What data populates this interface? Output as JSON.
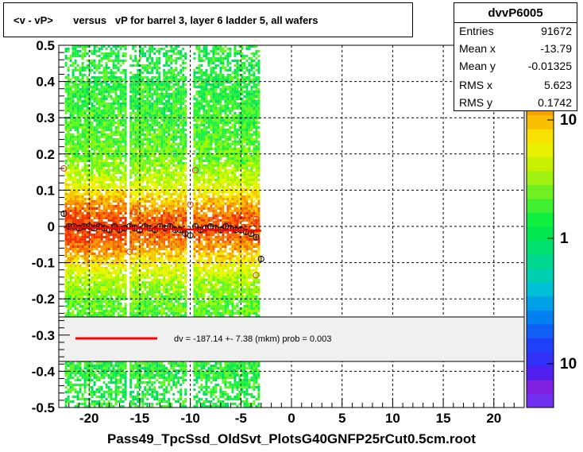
{
  "title": "<v - vP>       versus   vP for barrel 3, layer 6 ladder 5, all wafers",
  "stats": {
    "name": "dvvP6005",
    "rows": [
      {
        "label": "Entries",
        "value": "91672"
      },
      {
        "label": "Mean x",
        "value": "-13.79"
      },
      {
        "label": "Mean y",
        "value": "-0.01325"
      },
      {
        "label": "RMS x",
        "value": "5.623"
      },
      {
        "label": "RMS y",
        "value": "0.1742"
      }
    ]
  },
  "x_axis_title": "Pass49_TpcSsd_OldSvt_PlotsG40GNFP25rCut0.5cm.root",
  "legend": {
    "fit_text": "dv = -187.14 +-  7.38 (mkm) prob = 0.003",
    "line_color": "#ff0000"
  },
  "color_scale": {
    "labels": [
      "10",
      "1",
      "10"
    ]
  },
  "chart_data": {
    "type": "heatmap",
    "title": "<v - vP>       versus   vP for barrel 3, layer 6 ladder 5, all wafers",
    "xlabel": "Pass49_TpcSsd_OldSvt_PlotsG40GNFP25rCut0.5cm.root",
    "ylabel": "",
    "xlim": [
      -23,
      23
    ],
    "ylim": [
      -0.5,
      0.5
    ],
    "x_ticks": [
      -20,
      -15,
      -10,
      -5,
      0,
      5,
      10,
      15,
      20
    ],
    "y_ticks": [
      -0.5,
      -0.4,
      -0.3,
      -0.2,
      -0.1,
      0,
      0.1,
      0.2,
      0.3,
      0.4,
      0.5
    ],
    "grid": true,
    "density_bands": [
      {
        "x_range": [
          -22.4,
          -16.3
        ],
        "y_range": [
          -0.5,
          0.5
        ]
      },
      {
        "x_range": [
          -16.0,
          -10.5
        ],
        "y_range": [
          -0.5,
          0.5
        ]
      },
      {
        "x_range": [
          -9.7,
          -3.3
        ],
        "y_range": [
          -0.5,
          0.5
        ]
      }
    ],
    "profile_points": {
      "x": [
        -22.5,
        -22,
        -21.5,
        -21,
        -20.5,
        -20,
        -19.5,
        -19,
        -18.5,
        -18,
        -17.5,
        -17,
        -16.5,
        -16,
        -15.5,
        -15,
        -14.5,
        -14,
        -13.5,
        -13,
        -12.5,
        -12,
        -11.5,
        -11,
        -10.5,
        -10,
        -9.5,
        -9,
        -8.5,
        -8,
        -7.5,
        -7,
        -6.5,
        -6,
        -5.5,
        -5,
        -4.5,
        -4,
        -3.5,
        -3
      ],
      "y": [
        0.035,
        0.0,
        0.0,
        -0.005,
        0.0,
        0.0,
        -0.005,
        0.0,
        -0.005,
        -0.01,
        0.0,
        -0.01,
        -0.005,
        0.0,
        -0.005,
        -0.01,
        0.0,
        -0.005,
        -0.01,
        0.0,
        -0.005,
        0.0,
        -0.01,
        -0.01,
        -0.02,
        -0.025,
        0.0,
        -0.01,
        -0.005,
        0.0,
        -0.005,
        -0.01,
        0.0,
        -0.005,
        -0.01,
        -0.01,
        -0.015,
        -0.02,
        -0.03,
        -0.09
      ]
    },
    "outlier_points": {
      "x": [
        -22.5,
        -16,
        -15.5,
        -13.5,
        -12,
        -10,
        -9.5,
        -7.5,
        -5,
        -3.5,
        -3.5
      ],
      "y": [
        0.16,
        -0.07,
        0.04,
        0.0,
        0.02,
        0.06,
        0.155,
        0.02,
        0.02,
        0.02,
        -0.135
      ]
    },
    "fit_line": {
      "x": [
        -22.5,
        -3
      ],
      "y": [
        -0.002,
        -0.012
      ],
      "color": "#ff0000"
    }
  }
}
